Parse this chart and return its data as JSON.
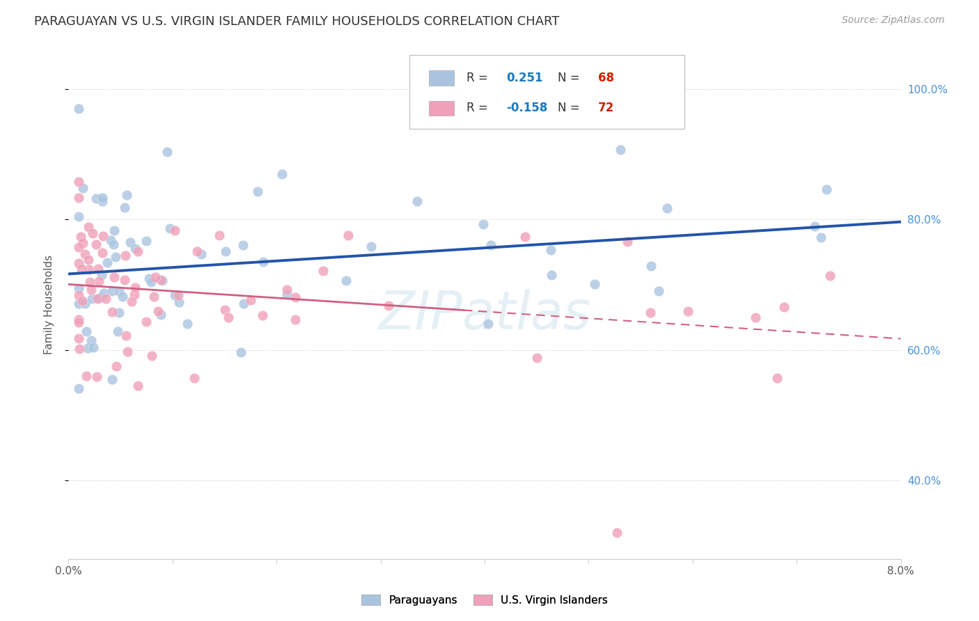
{
  "title": "PARAGUAYAN VS U.S. VIRGIN ISLANDER FAMILY HOUSEHOLDS CORRELATION CHART",
  "source": "Source: ZipAtlas.com",
  "ylabel": "Family Households",
  "ytick_labels": [
    "40.0%",
    "60.0%",
    "80.0%",
    "100.0%"
  ],
  "ytick_values": [
    0.4,
    0.6,
    0.8,
    1.0
  ],
  "xlim": [
    0.0,
    0.08
  ],
  "ylim": [
    0.28,
    1.06
  ],
  "paraguayan_color": "#aac4e0",
  "virgin_islander_color": "#f0a0b8",
  "line1_color": "#2255aa",
  "line2_color": "#d06080",
  "watermark": "ZIPatlas",
  "background_color": "#ffffff",
  "title_color": "#333333",
  "source_color": "#999999",
  "ylabel_color": "#555555",
  "ytick_color": "#4a90d9",
  "xtick_color": "#555555",
  "grid_color": "#dddddd",
  "legend_r_color": "#1a7abf",
  "legend_n_color": "#cc2200",
  "legend_text_color": "#333333",
  "legend_box_color": "#bbbbbb"
}
